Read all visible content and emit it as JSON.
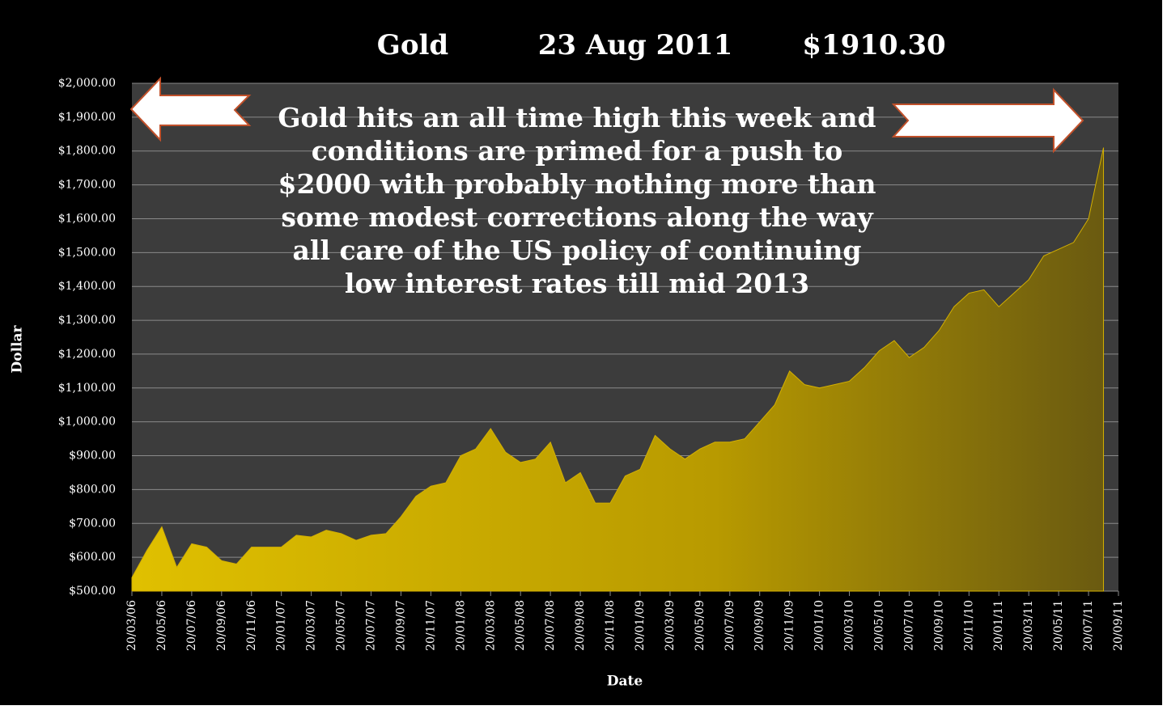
{
  "chart_data": {
    "type": "area",
    "title": "Gold",
    "title_date": "23 Aug  2011",
    "title_price": "$1910.30",
    "annotation": [
      "Gold hits an all time high this week and",
      "conditions are primed  for a push to",
      "$2000 with probably nothing more than",
      "some modest corrections along the way",
      "all care of the US policy of continuing",
      "low interest  rates till mid 2013"
    ],
    "x_label": "Date",
    "y_label": "Dollar",
    "color": "#d4b000",
    "categories": [
      "20/03/06",
      null,
      "20/05/06",
      null,
      "20/07/06",
      null,
      "20/09/06",
      null,
      "20/11/06",
      null,
      "20/01/07",
      null,
      "20/03/07",
      null,
      "20/05/07",
      null,
      "20/07/07",
      null,
      "20/09/07",
      null,
      "20/11/07",
      null,
      "20/01/08",
      null,
      "20/03/08",
      null,
      "20/05/08",
      null,
      "20/07/08",
      null,
      "20/09/08",
      null,
      "20/11/08",
      null,
      "20/01/09",
      null,
      "20/03/09",
      null,
      "20/05/09",
      null,
      "20/07/09",
      null,
      "20/09/09",
      null,
      "20/11/09",
      null,
      "20/01/10",
      null,
      "20/03/10",
      null,
      "20/05/10",
      null,
      "20/07/10",
      null,
      "20/09/10",
      null,
      "20/11/10",
      null,
      "20/01/11",
      null,
      "20/03/11",
      null,
      "20/05/11",
      null,
      "20/07/11",
      null,
      "20/09/11"
    ],
    "values": [
      540,
      620,
      690,
      570,
      640,
      630,
      590,
      580,
      630,
      630,
      630,
      665,
      660,
      680,
      670,
      650,
      665,
      670,
      720,
      780,
      810,
      820,
      900,
      920,
      980,
      910,
      880,
      890,
      940,
      820,
      850,
      760,
      760,
      840,
      860,
      960,
      920,
      890,
      920,
      940,
      940,
      950,
      1000,
      1050,
      1150,
      1110,
      1100,
      1110,
      1120,
      1160,
      1210,
      1240,
      1190,
      1220,
      1270,
      1340,
      1380,
      1390,
      1340,
      1380,
      1420,
      1490,
      1510,
      1530,
      1600,
      1810,
      null
    ],
    "ylim": [
      500,
      2000
    ],
    "yticks": [
      {
        "value": 500,
        "label": "$500.00"
      },
      {
        "value": 600,
        "label": "$600.00"
      },
      {
        "value": 700,
        "label": "$700.00"
      },
      {
        "value": 800,
        "label": "$800.00"
      },
      {
        "value": 900,
        "label": "$900.00"
      },
      {
        "value": 1000,
        "label": "$1,000.00"
      },
      {
        "value": 1100,
        "label": "$1,100.00"
      },
      {
        "value": 1200,
        "label": "$1,200.00"
      },
      {
        "value": 1300,
        "label": "$1,300.00"
      },
      {
        "value": 1400,
        "label": "$1,400.00"
      },
      {
        "value": 1500,
        "label": "$1,500.00"
      },
      {
        "value": 1600,
        "label": "$1,600.00"
      },
      {
        "value": 1700,
        "label": "$1,700.00"
      },
      {
        "value": 1800,
        "label": "$1,800.00"
      },
      {
        "value": 1900,
        "label": "$1,900.00"
      },
      {
        "value": 2000,
        "label": "$2,000.00"
      }
    ],
    "grid": true
  }
}
